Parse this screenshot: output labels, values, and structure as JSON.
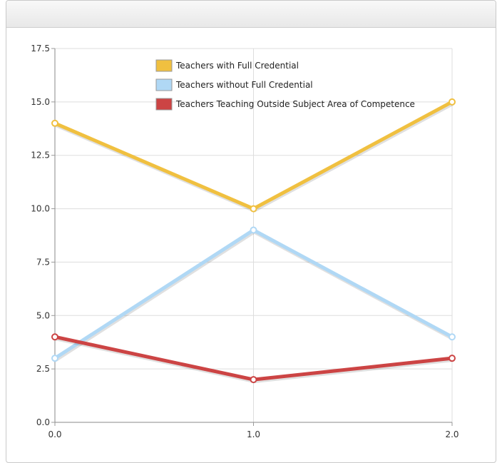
{
  "chart_data": {
    "type": "line",
    "x": [
      0.0,
      1.0,
      2.0
    ],
    "xticks": [
      "0.0",
      "1.0",
      "2.0"
    ],
    "yticks": [
      "0.0",
      "2.5",
      "5.0",
      "7.5",
      "10.0",
      "12.5",
      "15.0",
      "17.5"
    ],
    "xlim": [
      0,
      2
    ],
    "ylim": [
      0,
      17.5
    ],
    "grid": true,
    "legend_position": "top-center",
    "series": [
      {
        "name": "Teachers with Full Credential",
        "values": [
          14,
          10,
          15
        ],
        "color": "#f0c040"
      },
      {
        "name": "Teachers without Full Credential",
        "values": [
          3,
          9,
          4
        ],
        "color": "#b0d8f5"
      },
      {
        "name": "Teachers Teaching Outside Subject Area of Competence",
        "values": [
          4,
          2,
          3
        ],
        "color": "#cc4444"
      }
    ]
  }
}
